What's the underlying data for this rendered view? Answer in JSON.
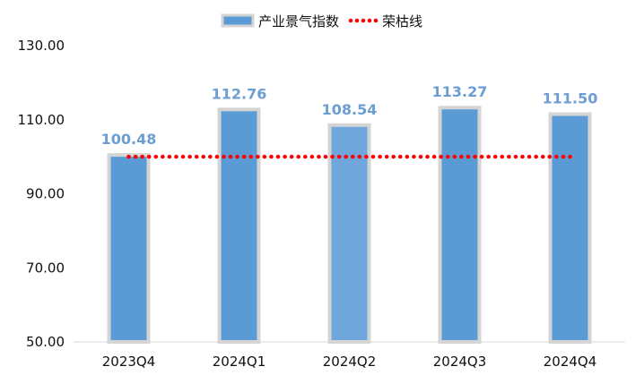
{
  "chart_data": {
    "type": "bar",
    "categories": [
      "2023Q4",
      "2024Q1",
      "2024Q2",
      "2024Q3",
      "2024Q4"
    ],
    "series": [
      {
        "name": "产业景气指数",
        "type": "bar",
        "values": [
          100.48,
          112.76,
          108.54,
          113.27,
          111.5
        ]
      },
      {
        "name": "荣枯线",
        "type": "line",
        "style": "dotted",
        "values": [
          100,
          100,
          100,
          100,
          100
        ]
      }
    ],
    "data_labels": [
      "100.48",
      "112.76",
      "108.54",
      "113.27",
      "111.50"
    ],
    "y_ticks": [
      "50.00",
      "70.00",
      "90.00",
      "110.00",
      "130.00"
    ],
    "ylim": [
      50,
      130
    ],
    "grid": false,
    "legend_position": "top-center",
    "colors": {
      "bar": "#5b9bd5",
      "bar_alt": "#6fa6dc",
      "bar_border": "#d4d4d4",
      "line": "#ff0000",
      "label": "#6d9ed3"
    }
  }
}
